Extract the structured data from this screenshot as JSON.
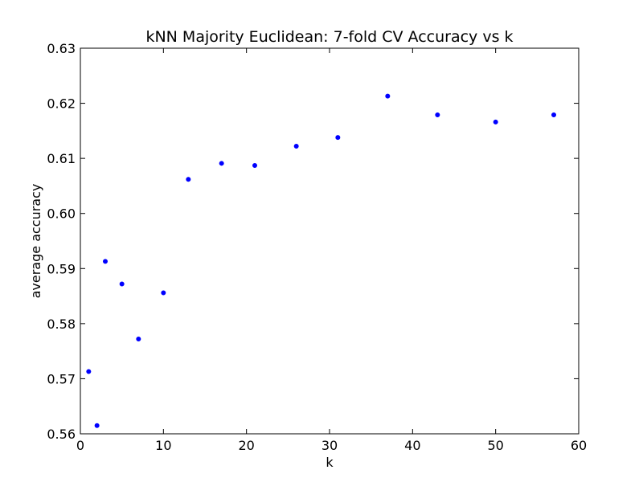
{
  "chart_data": {
    "type": "scatter",
    "title": "kNN Majority Euclidean: 7-fold CV Accuracy vs k",
    "xlabel": "k",
    "ylabel": "average accuracy",
    "xlim": [
      0,
      60
    ],
    "ylim": [
      0.56,
      0.63
    ],
    "x_ticks": [
      0,
      10,
      20,
      30,
      40,
      50,
      60
    ],
    "x_tick_labels": [
      "0",
      "10",
      "20",
      "30",
      "40",
      "50",
      "60"
    ],
    "y_ticks": [
      0.56,
      0.57,
      0.58,
      0.59,
      0.6,
      0.61,
      0.62,
      0.63
    ],
    "y_tick_labels": [
      "0.56",
      "0.57",
      "0.58",
      "0.59",
      "0.60",
      "0.61",
      "0.62",
      "0.63"
    ],
    "grid": false,
    "marker_color": "#0000ff",
    "series": [
      {
        "x": [
          1,
          2,
          3,
          5,
          7,
          10,
          13,
          17,
          21,
          26,
          31,
          37,
          43,
          50,
          57
        ],
        "y": [
          0.5713,
          0.5615,
          0.5913,
          0.5872,
          0.5772,
          0.5856,
          0.6062,
          0.6091,
          0.6087,
          0.6122,
          0.6138,
          0.6213,
          0.6179,
          0.6166,
          0.6179
        ]
      }
    ]
  }
}
